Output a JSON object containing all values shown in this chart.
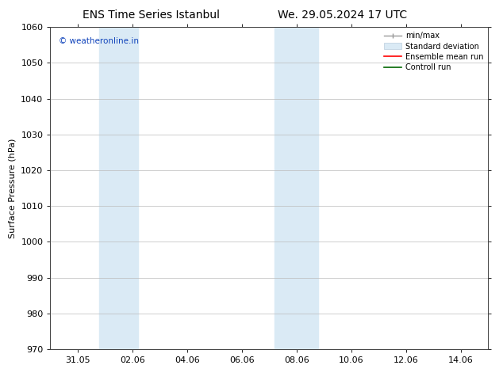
{
  "title_left": "ENS Time Series Istanbul",
  "title_right": "We. 29.05.2024 17 UTC",
  "ylabel": "Surface Pressure (hPa)",
  "ylim": [
    970,
    1060
  ],
  "yticks": [
    970,
    980,
    990,
    1000,
    1010,
    1020,
    1030,
    1040,
    1050,
    1060
  ],
  "xlim_start": 0.0,
  "xlim_end": 16.0,
  "xtick_labels": [
    "31.05",
    "02.06",
    "04.06",
    "06.06",
    "08.06",
    "10.06",
    "12.06",
    "14.06"
  ],
  "xtick_positions": [
    1.0,
    3.0,
    5.0,
    7.0,
    9.0,
    11.0,
    13.0,
    15.0
  ],
  "shaded_bands": [
    {
      "x_start": 1.8,
      "x_end": 3.2
    },
    {
      "x_start": 8.2,
      "x_end": 9.8
    }
  ],
  "shaded_color": "#daeaf5",
  "watermark_text": "© weatheronline.in",
  "watermark_color": "#1144bb",
  "bg_color": "#ffffff",
  "grid_color": "#bbbbbb",
  "font_size": 8,
  "title_font_size": 10,
  "legend_fontsize": 7
}
